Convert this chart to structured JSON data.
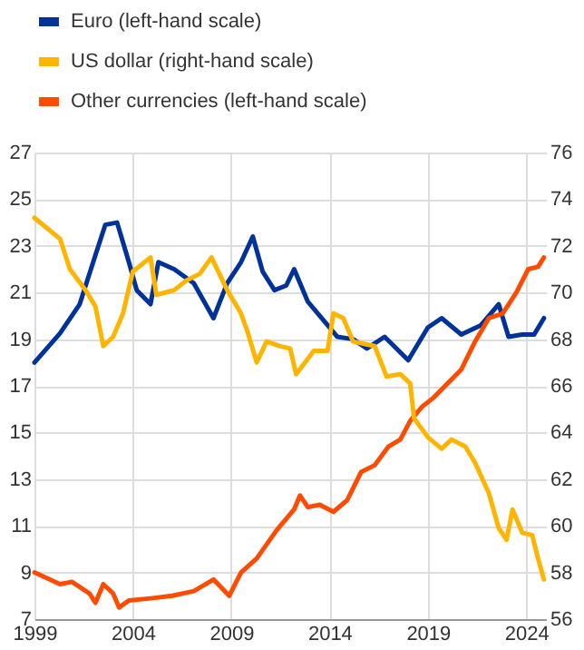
{
  "chart_data": {
    "type": "line",
    "legend": "top",
    "grid": true,
    "line_style": "solid",
    "marker": "none",
    "xlim": [
      1999,
      2025
    ],
    "xticks": [
      1999,
      2004,
      2009,
      2014,
      2019,
      2024
    ],
    "ylim": [
      7,
      27
    ],
    "yticks": [
      7,
      9,
      11,
      13,
      15,
      17,
      19,
      21,
      23,
      25,
      27
    ],
    "y2lim": [
      56,
      76
    ],
    "y2ticks": [
      56,
      58,
      60,
      62,
      64,
      66,
      68,
      70,
      72,
      74,
      76
    ],
    "series": [
      {
        "name": "Euro (left-hand scale)",
        "color": "#003299",
        "x": [
          1999.0,
          2000.3,
          2001.3,
          2002.1,
          2002.6,
          2003.2,
          2003.8,
          2004.2,
          2004.9,
          2005.3,
          2006.1,
          2007.1,
          2008.1,
          2008.8,
          2009.5,
          2010.1,
          2010.6,
          2011.2,
          2011.8,
          2012.2,
          2012.9,
          2013.9,
          2014.4,
          2015.2,
          2015.9,
          2016.8,
          2018.0,
          2019.0,
          2019.7,
          2020.7,
          2021.7,
          2022.6,
          2023.1,
          2023.8,
          2024.4,
          2024.9
        ],
        "values": [
          18.0,
          19.25,
          20.5,
          22.6,
          23.9,
          24.0,
          22.3,
          21.1,
          20.5,
          22.3,
          22.0,
          21.4,
          19.9,
          21.4,
          22.3,
          23.4,
          21.9,
          21.1,
          21.3,
          22.0,
          20.6,
          19.6,
          19.1,
          19.0,
          18.6,
          19.1,
          18.1,
          19.5,
          19.9,
          19.2,
          19.6,
          20.5,
          19.1,
          19.2,
          19.2,
          19.9
        ]
      },
      {
        "name": "US dollar (right-hand scale)",
        "color": "#ffb400",
        "axis": "y2",
        "x": [
          1999.0,
          2000.3,
          2000.8,
          2001.6,
          2002.1,
          2002.5,
          2003.0,
          2003.5,
          2004.0,
          2004.9,
          2005.2,
          2006.1,
          2006.7,
          2007.4,
          2008.0,
          2008.8,
          2009.5,
          2009.8,
          2010.3,
          2010.8,
          2011.5,
          2012.0,
          2012.3,
          2013.2,
          2013.9,
          2014.2,
          2014.7,
          2015.2,
          2016.3,
          2016.9,
          2017.6,
          2018.1,
          2018.3,
          2019.0,
          2019.7,
          2020.2,
          2020.9,
          2021.4,
          2022.1,
          2022.6,
          2023.0,
          2023.3,
          2023.8,
          2024.3,
          2024.6,
          2024.9
        ],
        "values": [
          73.2,
          72.3,
          71.0,
          70.1,
          69.4,
          67.7,
          68.1,
          69.1,
          70.9,
          71.5,
          69.9,
          70.1,
          70.5,
          70.8,
          71.5,
          70.1,
          69.1,
          68.4,
          67.0,
          67.9,
          67.7,
          67.6,
          66.5,
          67.5,
          67.5,
          69.1,
          68.9,
          67.9,
          67.7,
          66.4,
          66.5,
          66.1,
          64.6,
          63.8,
          63.3,
          63.7,
          63.4,
          62.7,
          61.4,
          59.9,
          59.4,
          60.7,
          59.7,
          59.6,
          58.6,
          57.7
        ]
      },
      {
        "name": "Other currencies (left-hand scale)",
        "color": "#ff4b00",
        "x": [
          1999.0,
          2000.3,
          2000.9,
          2001.8,
          2002.1,
          2002.5,
          2003.0,
          2003.3,
          2003.8,
          2005.0,
          2006.0,
          2007.1,
          2008.1,
          2008.9,
          2009.5,
          2010.3,
          2011.3,
          2012.2,
          2012.5,
          2012.9,
          2013.5,
          2014.2,
          2014.9,
          2015.6,
          2016.3,
          2017.0,
          2017.6,
          2018.1,
          2018.7,
          2019.3,
          2020.7,
          2021.4,
          2022.1,
          2022.8,
          2023.5,
          2024.1,
          2024.6,
          2024.9
        ],
        "values": [
          9.0,
          8.5,
          8.6,
          8.1,
          7.7,
          8.5,
          8.1,
          7.5,
          7.8,
          7.9,
          8.0,
          8.2,
          8.7,
          8.0,
          9.0,
          9.6,
          10.8,
          11.7,
          12.3,
          11.8,
          11.9,
          11.6,
          12.1,
          13.3,
          13.6,
          14.4,
          14.7,
          15.5,
          16.1,
          16.5,
          17.7,
          18.9,
          19.9,
          20.1,
          21.0,
          22.0,
          22.1,
          22.5
        ]
      }
    ]
  }
}
